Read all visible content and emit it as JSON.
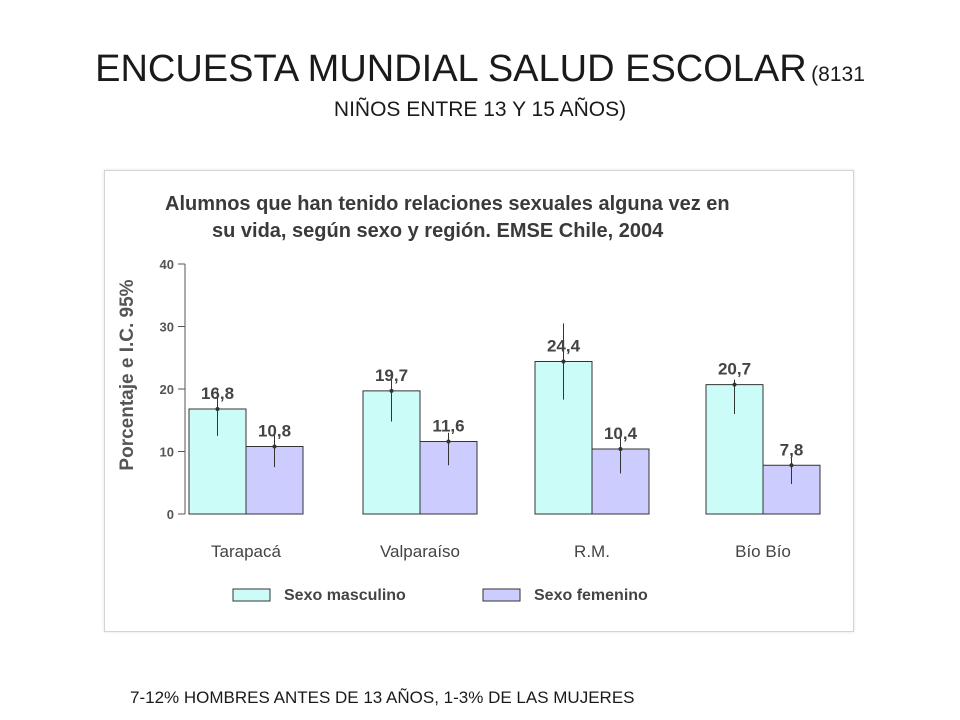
{
  "slide": {
    "title_main": "ENCUESTA MUNDIAL  SALUD ESCOLAR",
    "title_sub_line1": "(8131",
    "title_sub_line2": "NIÑOS ENTRE  13 Y 15 AÑOS)",
    "footnote": "7-12% HOMBRES ANTES DE 13 AÑOS, 1-3% DE LAS MUJERES"
  },
  "chart_data": {
    "type": "bar",
    "title": "Alumnos que han tenido relaciones sexuales alguna vez en su vida, según sexo y región. EMSE Chile, 2004",
    "title_lines": [
      "Alumnos que han tenido relaciones sexuales alguna vez en",
      "su vida, según sexo y región. EMSE Chile, 2004"
    ],
    "ylabel": "Porcentaje e I.C. 95%",
    "xlabel": "",
    "ylim": [
      0,
      40
    ],
    "yticks": [
      0,
      10,
      20,
      30,
      40
    ],
    "categories": [
      "Tarapacá",
      "Valparaíso",
      "R.M.",
      "Bío Bío"
    ],
    "series": [
      {
        "name": "Sexo masculino",
        "color": "#ccfcf8",
        "values": [
          16.8,
          19.7,
          24.4,
          20.7
        ],
        "labels": [
          "16,8",
          "19,7",
          "24,4",
          "20,7"
        ],
        "ci_low": [
          12.5,
          14.8,
          18.3,
          16.0
        ],
        "ci_high": [
          19.8,
          21.5,
          30.5,
          21.5
        ]
      },
      {
        "name": "Sexo femenino",
        "color": "#ccccff",
        "values": [
          10.8,
          11.6,
          10.4,
          7.8
        ],
        "labels": [
          "10,8",
          "11,6",
          "10,4",
          "7,8"
        ],
        "ci_low": [
          7.5,
          7.8,
          6.5,
          4.8
        ],
        "ci_high": [
          13.0,
          13.0,
          12.5,
          9.5
        ]
      }
    ],
    "legend": "bottom",
    "grid": false
  }
}
